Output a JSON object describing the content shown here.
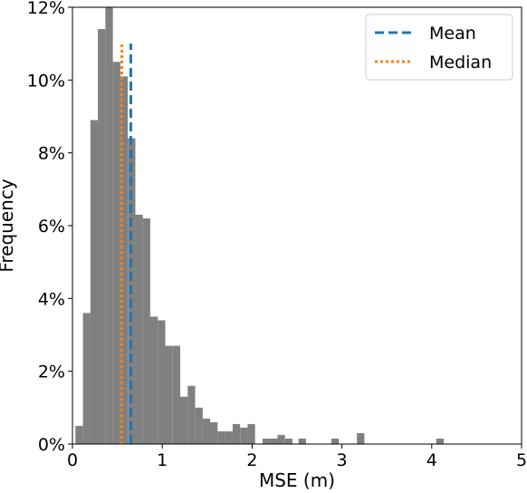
{
  "chart_data": {
    "type": "bar",
    "subtype": "histogram",
    "xlabel": "MSE (m)",
    "ylabel": "Frequency",
    "xlim": [
      0,
      5
    ],
    "ylim": [
      0,
      12
    ],
    "x_ticks": [
      0,
      1,
      2,
      3,
      4,
      5
    ],
    "x_tick_labels": [
      "0",
      "1",
      "2",
      "3",
      "4",
      "5"
    ],
    "y_ticks": [
      0,
      2,
      4,
      6,
      8,
      10,
      12
    ],
    "y_tick_labels": [
      "0%",
      "2%",
      "4%",
      "6%",
      "8%",
      "10%",
      "12%"
    ],
    "y_unit": "percent",
    "bin_width": 0.0833,
    "bar_color": "#808080",
    "bins": [
      {
        "x0": 0.033,
        "value": 0.5
      },
      {
        "x0": 0.117,
        "value": 3.6
      },
      {
        "x0": 0.2,
        "value": 8.9
      },
      {
        "x0": 0.283,
        "value": 11.4
      },
      {
        "x0": 0.367,
        "value": 12.0
      },
      {
        "x0": 0.45,
        "value": 10.5
      },
      {
        "x0": 0.533,
        "value": 10.1
      },
      {
        "x0": 0.617,
        "value": 8.4
      },
      {
        "x0": 0.7,
        "value": 6.3
      },
      {
        "x0": 0.783,
        "value": 6.2
      },
      {
        "x0": 0.867,
        "value": 3.5
      },
      {
        "x0": 0.95,
        "value": 3.4
      },
      {
        "x0": 1.033,
        "value": 2.7
      },
      {
        "x0": 1.117,
        "value": 2.7
      },
      {
        "x0": 1.2,
        "value": 1.3
      },
      {
        "x0": 1.283,
        "value": 1.6
      },
      {
        "x0": 1.367,
        "value": 1.0
      },
      {
        "x0": 1.45,
        "value": 0.7
      },
      {
        "x0": 1.533,
        "value": 0.6
      },
      {
        "x0": 1.617,
        "value": 0.35
      },
      {
        "x0": 1.7,
        "value": 0.35
      },
      {
        "x0": 1.783,
        "value": 0.55
      },
      {
        "x0": 1.867,
        "value": 0.45
      },
      {
        "x0": 1.95,
        "value": 0.55
      },
      {
        "x0": 2.117,
        "value": 0.15
      },
      {
        "x0": 2.2,
        "value": 0.15
      },
      {
        "x0": 2.283,
        "value": 0.25
      },
      {
        "x0": 2.367,
        "value": 0.15
      },
      {
        "x0": 2.517,
        "value": 0.15
      },
      {
        "x0": 2.883,
        "value": 0.15
      },
      {
        "x0": 3.167,
        "value": 0.3
      },
      {
        "x0": 4.05,
        "value": 0.15
      }
    ],
    "lines": [
      {
        "name": "Mean",
        "x": 0.65,
        "y_range": [
          0,
          11
        ],
        "color": "#1f77b4",
        "style": "dashed"
      },
      {
        "name": "Median",
        "x": 0.55,
        "y_range": [
          0,
          11
        ],
        "color": "#ff7f0e",
        "style": "dotted"
      }
    ],
    "legend": {
      "position": "top-right",
      "entries": [
        {
          "label": "Mean",
          "color": "#1f77b4",
          "style": "dashed"
        },
        {
          "label": "Median",
          "color": "#ff7f0e",
          "style": "dotted"
        }
      ]
    },
    "grid": false
  }
}
